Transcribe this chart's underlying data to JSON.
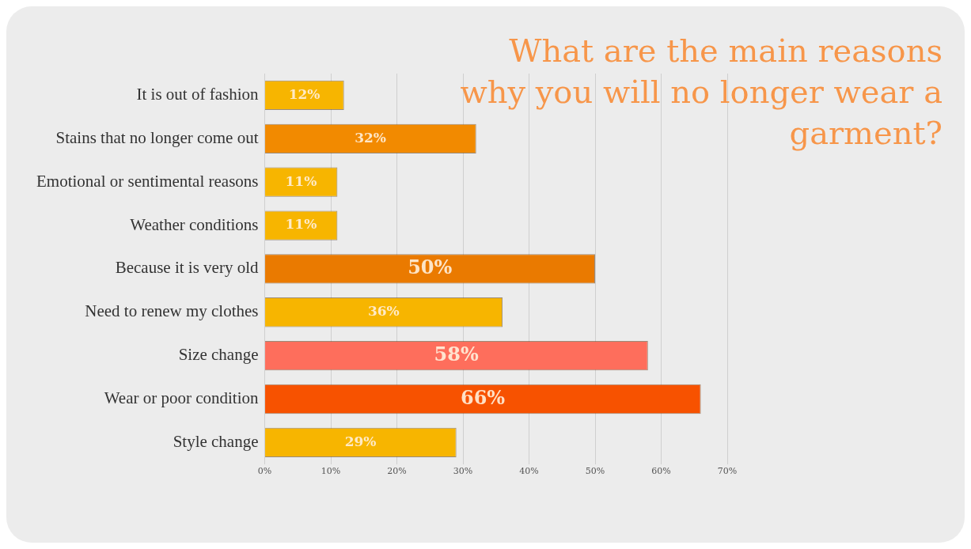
{
  "chart_data": {
    "type": "bar",
    "orientation": "horizontal",
    "title": "What are the main reasons why you will no longer wear a garment?",
    "categories": [
      "It is out of fashion",
      "Stains that no longer come out",
      "Emotional or sentimental reasons",
      "Weather conditions",
      "Because it is very old",
      "Need to renew my clothes",
      "Size change",
      "Wear or poor condition",
      "Style change"
    ],
    "values": [
      12,
      32,
      11,
      11,
      50,
      36,
      58,
      66,
      29
    ],
    "value_labels": [
      "12%",
      "32%",
      "11%",
      "11%",
      "50%",
      "36%",
      "58%",
      "66%",
      "29%"
    ],
    "colors": [
      "#f7b500",
      "#f28a00",
      "#f7b500",
      "#f7b500",
      "#ea7a00",
      "#f7b500",
      "#fe6e5c",
      "#f75200",
      "#f7b500"
    ],
    "xlim": [
      0,
      70
    ],
    "xticks": [
      {
        "value": 0,
        "label": "0%"
      },
      {
        "value": 10,
        "label": "10%"
      },
      {
        "value": 20,
        "label": "20%"
      },
      {
        "value": 30,
        "label": "30%"
      },
      {
        "value": 40,
        "label": "40%"
      },
      {
        "value": 50,
        "label": "50%"
      },
      {
        "value": 60,
        "label": "60%"
      },
      {
        "value": 70,
        "label": "70%"
      }
    ],
    "grid": "x",
    "legend": false
  }
}
